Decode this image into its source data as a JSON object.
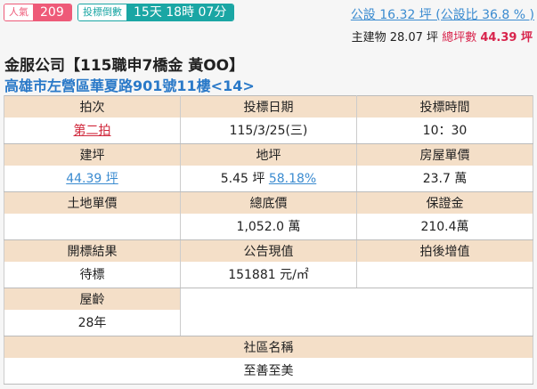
{
  "badges": {
    "popularity_label": "人氣",
    "popularity": "209",
    "countdown_label": "投標倒數",
    "countdown": "15天 18時 07分"
  },
  "area": {
    "public": "公設 16.32 坪 (公設比 36.8 % )",
    "main_label": "主建物 28.07 坪",
    "total_label": "總坪數",
    "total": "44.39 坪"
  },
  "title": "金服公司【115職申7橋金 黃OO】",
  "address": "高雄市左營區華夏路901號11樓<14>",
  "table": {
    "auction_round_h": "拍次",
    "auction_round": "第二拍",
    "bid_date_h": "投標日期",
    "bid_date": "115/3/25(三)",
    "bid_time_h": "投標時間",
    "bid_time": "10：30",
    "building_area_h": "建坪",
    "building_area": "44.39 坪",
    "land_area_h": "地坪",
    "land_area": "5.45 坪",
    "land_ratio": "58.18%",
    "house_unit_price_h": "房屋單價",
    "house_unit_price": "23.7 萬",
    "land_unit_price_h": "土地單價",
    "land_unit_price": "",
    "reserve_price_h": "總底價",
    "reserve_price": "1,052.0 萬",
    "deposit_h": "保證金",
    "deposit": "210.4萬",
    "result_h": "開標結果",
    "result": "待標",
    "announced_value_h": "公告現值",
    "announced_value": "151881 元/㎡",
    "post_auction_gain_h": "拍後增值",
    "post_auction_gain": "",
    "age_h": "屋齡",
    "age": "28年",
    "community_h": "社區名稱",
    "community": "至善至美"
  },
  "colors": {
    "pink": "#ee5a78",
    "teal": "#1aa6a4",
    "link": "#3a8bd0",
    "header_bg": "#f4dfc8"
  }
}
